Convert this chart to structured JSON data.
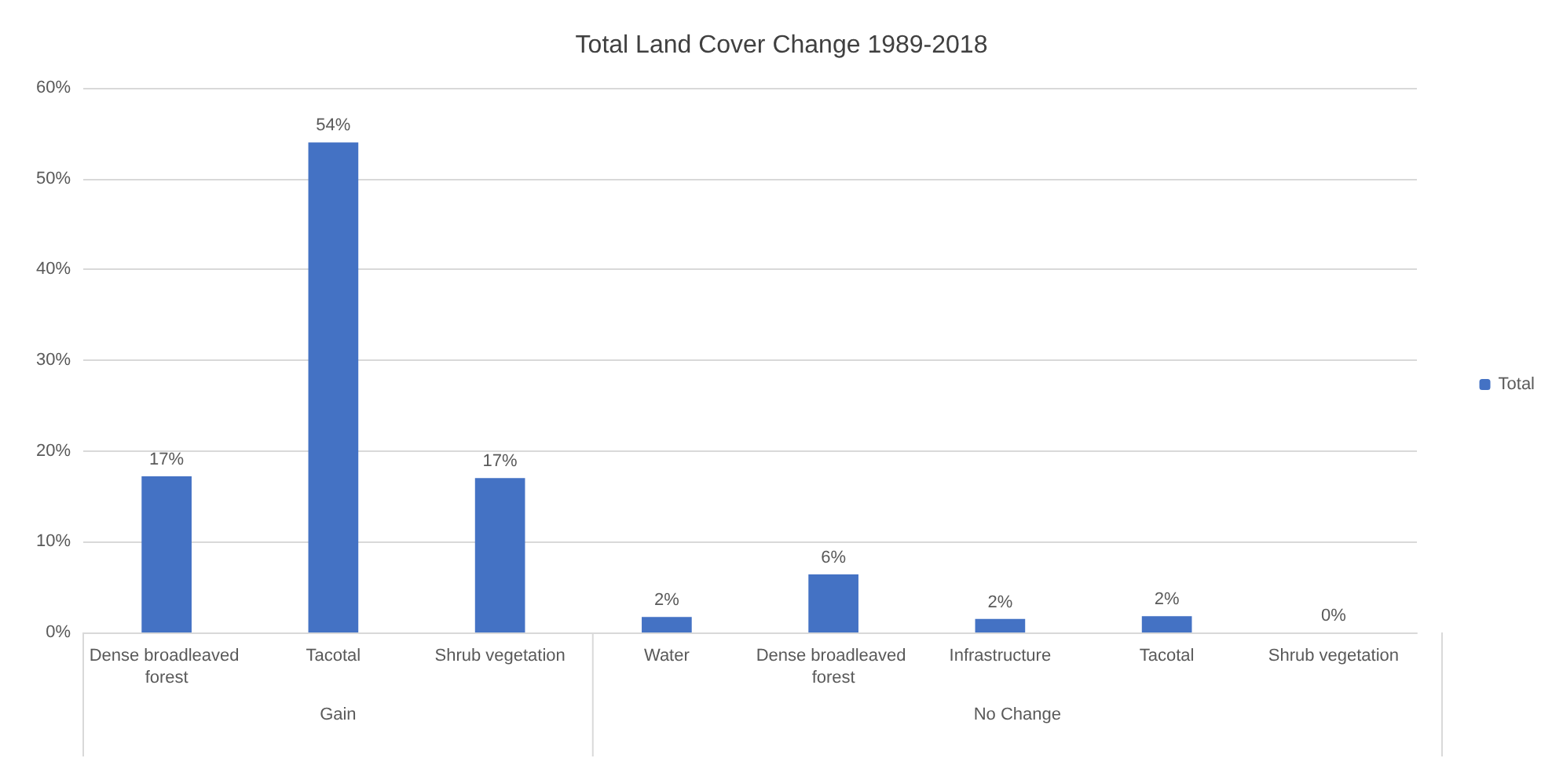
{
  "chart_data": {
    "type": "bar",
    "title": "Total Land Cover Change 1989-2018",
    "categories": [
      "Dense broadleaved forest",
      "Tacotal",
      "Shrub vegetation",
      "Water",
      "Dense broadleaved forest",
      "Infrastructure",
      "Tacotal",
      "Shrub vegetation"
    ],
    "series": [
      {
        "name": "Total",
        "color": "#4472c4",
        "values": [
          17.2,
          54,
          17,
          1.7,
          6.4,
          1.5,
          1.8,
          0
        ],
        "value_labels": [
          "17%",
          "54%",
          "17%",
          "2%",
          "6%",
          "2%",
          "2%",
          "0%"
        ]
      }
    ],
    "ylim": [
      0,
      60
    ],
    "yticks": [
      {
        "value": 0,
        "label": "0%"
      },
      {
        "value": 10,
        "label": "10%"
      },
      {
        "value": 20,
        "label": "20%"
      },
      {
        "value": 30,
        "label": "30%"
      },
      {
        "value": 40,
        "label": "40%"
      },
      {
        "value": 50,
        "label": "50%"
      },
      {
        "value": 60,
        "label": "60%"
      }
    ],
    "annotations": [
      "Gain",
      "No Change"
    ],
    "grid": "y",
    "legend": "right"
  }
}
